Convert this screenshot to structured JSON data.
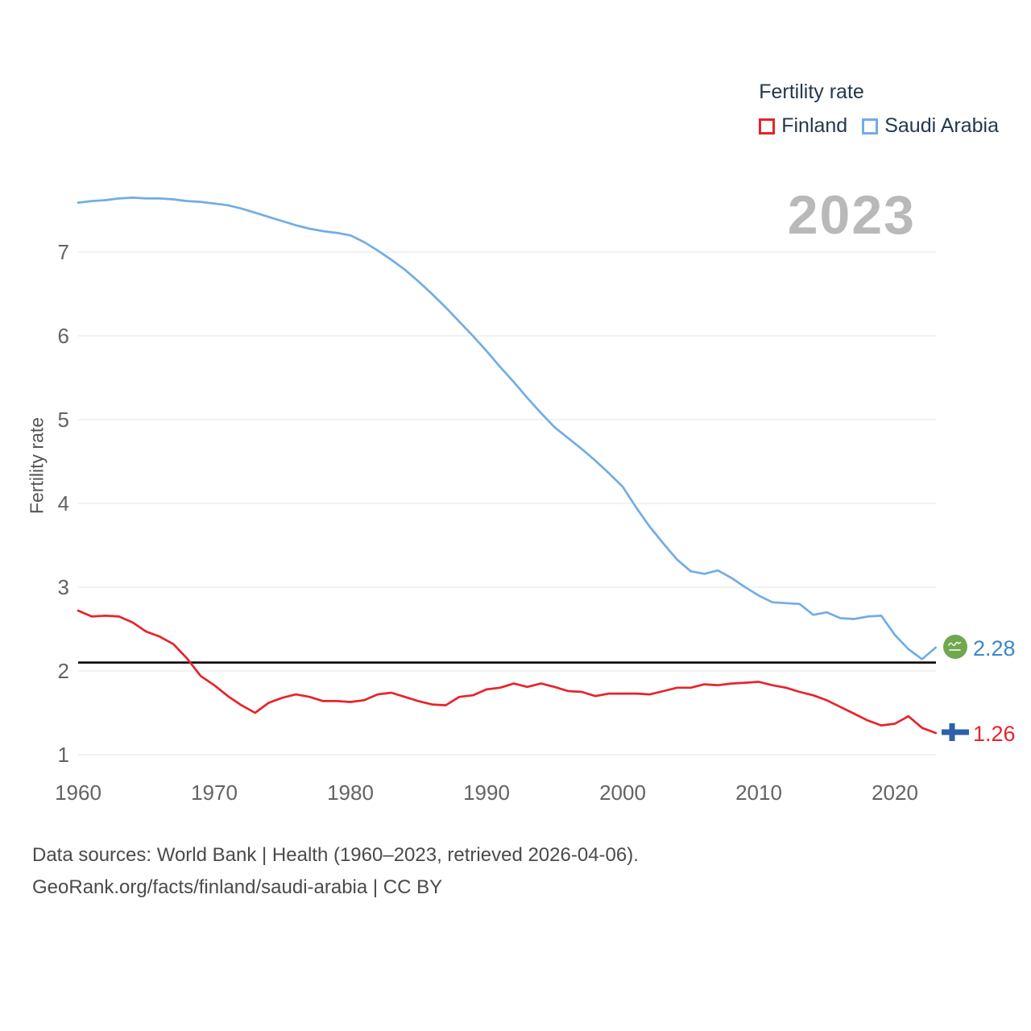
{
  "legend": {
    "title": "Fertility rate",
    "items": [
      {
        "label": "Finland",
        "color": "#e8232b"
      },
      {
        "label": "Saudi Arabia",
        "color": "#70ade6"
      }
    ]
  },
  "watermark_year": "2023",
  "end_labels": {
    "saudi_arabia": {
      "value": "2.28",
      "color": "#3b87c9",
      "icon": "saudi-arabia-flag"
    },
    "finland": {
      "value": "1.26",
      "color": "#e8232b",
      "icon": "finland-flag"
    }
  },
  "footer": {
    "line1": "Data sources: World Bank | Health (1960–2023, retrieved 2026-04-06).",
    "line2": "GeoRank.org/facts/finland/saudi-arabia | CC BY"
  },
  "chart_data": {
    "type": "line",
    "title": "Fertility rate",
    "ylabel": "Fertility rate",
    "xlabel": "",
    "ylim": [
      1,
      7.9
    ],
    "xlim": [
      1960,
      2023
    ],
    "yticks": [
      1,
      2,
      3,
      4,
      5,
      6,
      7
    ],
    "xticks": [
      1960,
      1970,
      1980,
      1990,
      2000,
      2010,
      2020
    ],
    "grid": true,
    "legend_position": "top-right",
    "reference_line": {
      "value": 2.1,
      "color": "#000000"
    },
    "x": [
      1960,
      1961,
      1962,
      1963,
      1964,
      1965,
      1966,
      1967,
      1968,
      1969,
      1970,
      1971,
      1972,
      1973,
      1974,
      1975,
      1976,
      1977,
      1978,
      1979,
      1980,
      1981,
      1982,
      1983,
      1984,
      1985,
      1986,
      1987,
      1988,
      1989,
      1990,
      1991,
      1992,
      1993,
      1994,
      1995,
      1996,
      1997,
      1998,
      1999,
      2000,
      2001,
      2002,
      2003,
      2004,
      2005,
      2006,
      2007,
      2008,
      2009,
      2010,
      2011,
      2012,
      2013,
      2014,
      2015,
      2016,
      2017,
      2018,
      2019,
      2020,
      2021,
      2022,
      2023
    ],
    "series": [
      {
        "name": "Finland",
        "color": "#e8232b",
        "end_value": 1.26,
        "values": [
          2.72,
          2.65,
          2.66,
          2.65,
          2.58,
          2.47,
          2.41,
          2.32,
          2.15,
          1.94,
          1.83,
          1.7,
          1.59,
          1.5,
          1.62,
          1.68,
          1.72,
          1.69,
          1.64,
          1.64,
          1.63,
          1.65,
          1.72,
          1.74,
          1.69,
          1.64,
          1.6,
          1.59,
          1.69,
          1.71,
          1.78,
          1.8,
          1.85,
          1.81,
          1.85,
          1.81,
          1.76,
          1.75,
          1.7,
          1.73,
          1.73,
          1.73,
          1.72,
          1.76,
          1.8,
          1.8,
          1.84,
          1.83,
          1.85,
          1.86,
          1.87,
          1.83,
          1.8,
          1.75,
          1.71,
          1.65,
          1.57,
          1.49,
          1.41,
          1.35,
          1.37,
          1.46,
          1.32,
          1.26
        ]
      },
      {
        "name": "Saudi Arabia",
        "color": "#70ade6",
        "end_value": 2.28,
        "values": [
          7.59,
          7.61,
          7.62,
          7.64,
          7.65,
          7.64,
          7.64,
          7.63,
          7.61,
          7.6,
          7.58,
          7.56,
          7.52,
          7.47,
          7.42,
          7.37,
          7.32,
          7.28,
          7.25,
          7.23,
          7.2,
          7.12,
          7.02,
          6.91,
          6.79,
          6.65,
          6.5,
          6.34,
          6.17,
          6.0,
          5.82,
          5.63,
          5.45,
          5.26,
          5.08,
          4.91,
          4.78,
          4.65,
          4.51,
          4.36,
          4.2,
          3.95,
          3.72,
          3.52,
          3.33,
          3.19,
          3.16,
          3.2,
          3.11,
          3.0,
          2.9,
          2.82,
          2.81,
          2.8,
          2.67,
          2.7,
          2.63,
          2.62,
          2.65,
          2.66,
          2.43,
          2.26,
          2.14,
          2.28
        ]
      }
    ]
  }
}
